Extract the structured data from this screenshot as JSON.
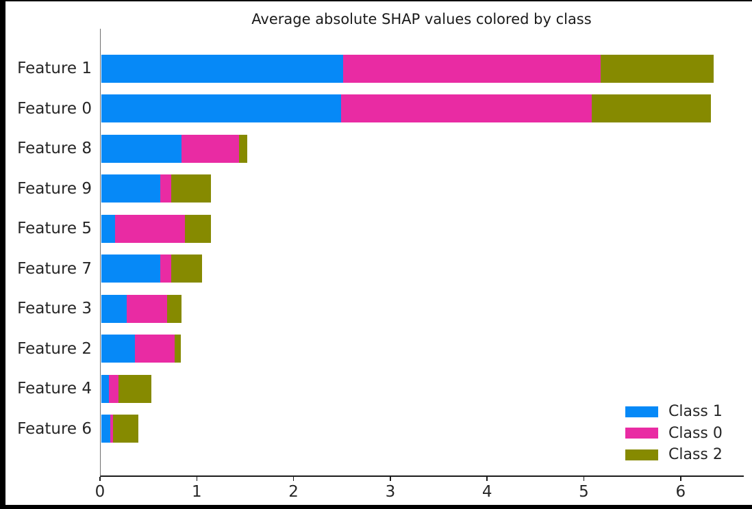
{
  "figure": {
    "title": "Average absolute SHAP values colored by class"
  },
  "chart_data": {
    "type": "bar",
    "orientation": "horizontal",
    "stacked": true,
    "title": "Average absolute SHAP values colored by class",
    "xlabel": "",
    "ylabel": "",
    "xlim": [
      0,
      6.65
    ],
    "x_ticks": [
      "0",
      "1",
      "2",
      "3",
      "4",
      "5",
      "6"
    ],
    "grid": false,
    "legend_position": "lower right",
    "categories": [
      "Feature 1",
      "Feature 0",
      "Feature 8",
      "Feature 9",
      "Feature 5",
      "Feature 7",
      "Feature 3",
      "Feature 2",
      "Feature 4",
      "Feature 6"
    ],
    "series": [
      {
        "name": "Class 1",
        "color": "#0689f7",
        "values": [
          2.5,
          2.48,
          0.83,
          0.61,
          0.14,
          0.61,
          0.26,
          0.35,
          0.08,
          0.09
        ]
      },
      {
        "name": "Class 0",
        "color": "#e92ba3",
        "values": [
          2.66,
          2.59,
          0.59,
          0.11,
          0.72,
          0.11,
          0.42,
          0.41,
          0.1,
          0.03
        ]
      },
      {
        "name": "Class 2",
        "color": "#868a00",
        "values": [
          1.17,
          1.23,
          0.09,
          0.41,
          0.27,
          0.32,
          0.15,
          0.06,
          0.34,
          0.26
        ]
      }
    ],
    "totals": [
      6.33,
      6.3,
      1.51,
      1.13,
      1.13,
      1.04,
      0.83,
      0.82,
      0.52,
      0.38
    ]
  }
}
